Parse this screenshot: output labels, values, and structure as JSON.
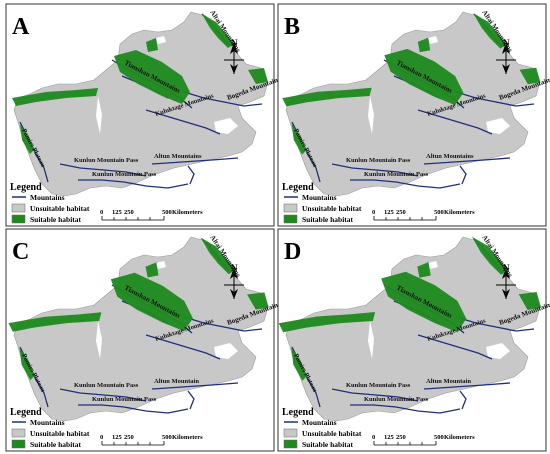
{
  "panels": [
    {
      "letter": "A",
      "variant": 0
    },
    {
      "letter": "B",
      "variant": 1
    },
    {
      "letter": "C",
      "variant": 2
    },
    {
      "letter": "D",
      "variant": 3
    }
  ],
  "mountain_labels": {
    "altai": "Altai Mountains",
    "tianshan": "Tianshan Mountains",
    "bogeda": "Bogeda Mountains",
    "kuluktage": "Kuluktage Mountains",
    "pamir": "Pamirs Plateau",
    "kunlun_pass": "Kunlun Mountain Pass",
    "altun_a": "Altun Mountains",
    "altun_c": "Altun Mountain"
  },
  "north_label": "N",
  "legend": {
    "title": "Legend",
    "items": [
      {
        "label": "Mountains",
        "symbol": "line",
        "color": "#1f2f7a"
      },
      {
        "label": "Unsuitable habitat",
        "symbol": "box",
        "color": "#c8c8c8"
      },
      {
        "label": "Suitable habitat",
        "symbol": "box",
        "color": "#1e8a1e"
      }
    ]
  },
  "scale_bar": {
    "ticks": [
      "0",
      "125",
      "250",
      "500"
    ],
    "unit": "Kilometers"
  },
  "colors": {
    "land": "#c8c8c8",
    "suitable": "#1e8a1e",
    "mountains": "#1f2f7a",
    "frame": "#333333"
  }
}
